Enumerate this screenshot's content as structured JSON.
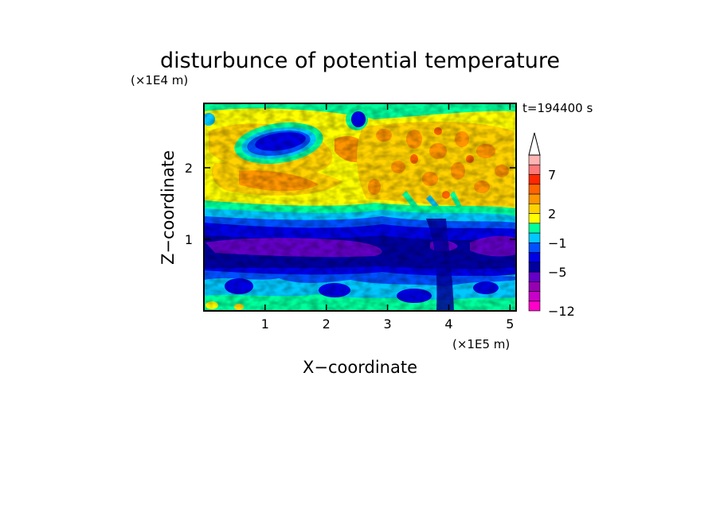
{
  "chart_data": {
    "type": "heatmap",
    "title": "disturbunce of potential temperature",
    "time_label": "t=194400 s",
    "xlabel": "X−coordinate",
    "ylabel": "Z−coordinate",
    "x_unit": "(×1E5 m)",
    "y_unit": "(×1E4 m)",
    "xlim": [
      0,
      5.1
    ],
    "ylim": [
      0,
      2.9
    ],
    "x_ticks": [
      "1",
      "2",
      "3",
      "4",
      "5"
    ],
    "y_ticks": [
      "1",
      "2"
    ],
    "colorbar": {
      "labels": [
        "7",
        "2",
        "−1",
        "−5",
        "−12"
      ],
      "colors": [
        "#ff00c8",
        "#c800c8",
        "#9600b4",
        "#6400c8",
        "#0000a0",
        "#0000e6",
        "#0050ff",
        "#00c8ff",
        "#00ff9c",
        "#ffff00",
        "#ffd200",
        "#ff9600",
        "#ff6400",
        "#ff2800",
        "#ff7878",
        "#ffb4b4",
        "#ffffff"
      ],
      "extend": "max"
    }
  }
}
